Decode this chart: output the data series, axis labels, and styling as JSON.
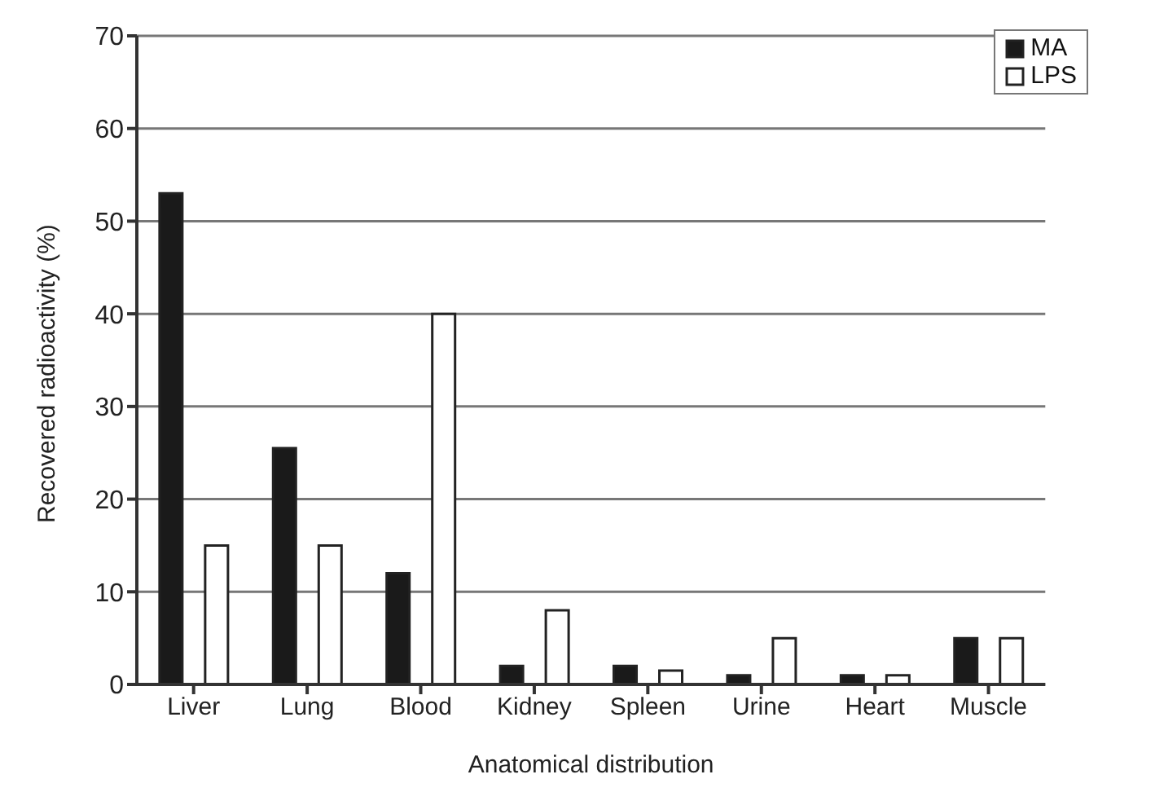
{
  "chart_data": {
    "type": "bar",
    "xlabel": "Anatomical distribution",
    "ylabel": "Recovered radioactivity (%)",
    "categories": [
      "Liver",
      "Lung",
      "Blood",
      "Kidney",
      "Spleen",
      "Urine",
      "Heart",
      "Muscle"
    ],
    "series": [
      {
        "name": "MA",
        "color": "#1a1a1a",
        "values": [
          53,
          25.5,
          12,
          2,
          2,
          1,
          1,
          5
        ]
      },
      {
        "name": "LPS",
        "color": "#ffffff",
        "values": [
          15,
          15,
          40,
          8,
          1.5,
          5,
          1,
          5
        ]
      }
    ],
    "ylim": [
      0,
      70
    ],
    "yticks": [
      0,
      10,
      20,
      30,
      40,
      50,
      60,
      70
    ],
    "grid": "y",
    "legend": "top right"
  }
}
